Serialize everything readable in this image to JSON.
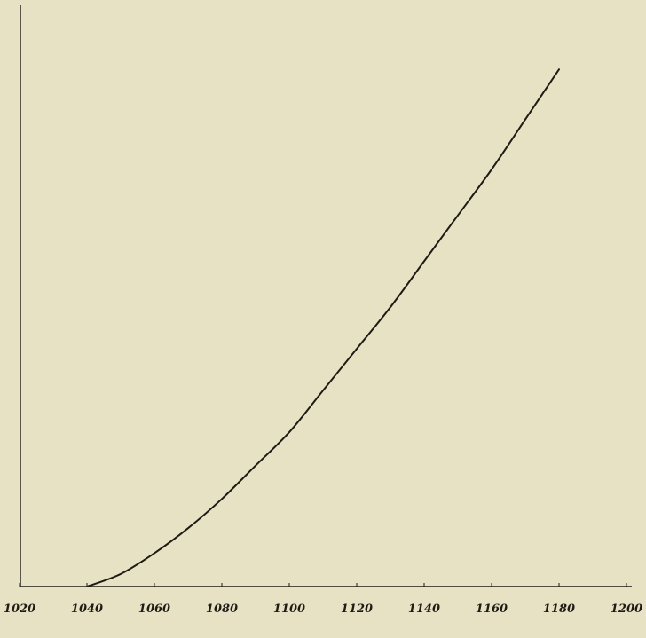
{
  "chart_data": {
    "type": "line",
    "title": "",
    "xlabel": "",
    "ylabel": "",
    "xlim": [
      1020,
      1200
    ],
    "xticks": [
      "1020",
      "1040",
      "1060",
      "1080",
      "1100",
      "1120",
      "1140",
      "1160",
      "1180",
      "1200"
    ],
    "grid": false,
    "legend": "none",
    "colors": {
      "paper": "#e8e2c5",
      "ink": "#1e1b14"
    },
    "series": [
      {
        "x": [
          1040,
          1050,
          1060,
          1070,
          1080,
          1090,
          1100,
          1110,
          1120,
          1130,
          1140,
          1150,
          1160,
          1170,
          1180
        ],
        "y": [
          0,
          3,
          8,
          14,
          21,
          29,
          37,
          47,
          57,
          67,
          78,
          89,
          100,
          112,
          124
        ]
      }
    ]
  }
}
